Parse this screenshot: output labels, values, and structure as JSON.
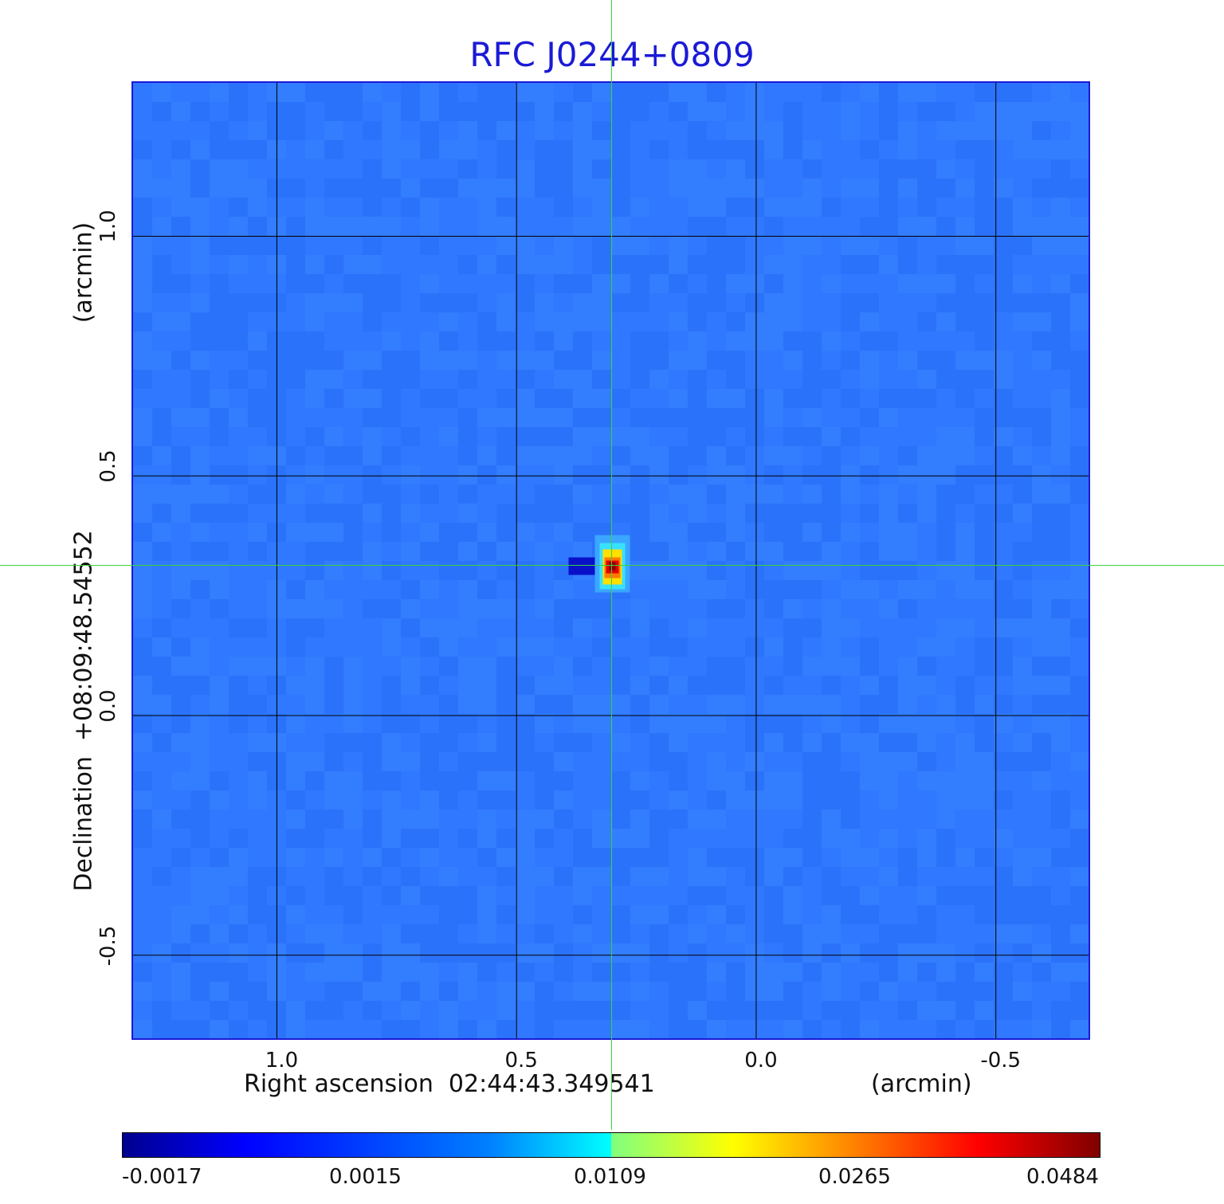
{
  "chart_data": {
    "type": "heatmap",
    "title": "RFC J0244+0809",
    "xlabel": "Right ascension  02:44:43.349541",
    "x_unit": "(arcmin)",
    "ylabel": "Declination  +08:09:48.54552",
    "y_unit": "(arcmin)",
    "x_ticks": [
      "1.0",
      "0.5",
      "0.0",
      "-0.5"
    ],
    "x_tick_values": [
      1.0,
      0.5,
      0.0,
      -0.5
    ],
    "y_ticks": [
      "1.0",
      "0.5",
      "0.0",
      "-0.5"
    ],
    "y_tick_values": [
      1.0,
      0.5,
      0.0,
      -0.5
    ],
    "xlim": [
      1.3,
      -0.7
    ],
    "ylim": [
      -0.68,
      1.32
    ],
    "grid": true,
    "colormap": "jet",
    "colorbar_ticks": [
      "-0.0017",
      "0.0015",
      "0.0109",
      "0.0265",
      "0.0484"
    ],
    "colorbar_range": [
      -0.0017,
      0.0484
    ],
    "source_peak": {
      "x": 0.3,
      "y": 0.31,
      "value": 0.0484
    },
    "crosshair_color": "#3ad43a",
    "background_color": "#2f78ff"
  }
}
